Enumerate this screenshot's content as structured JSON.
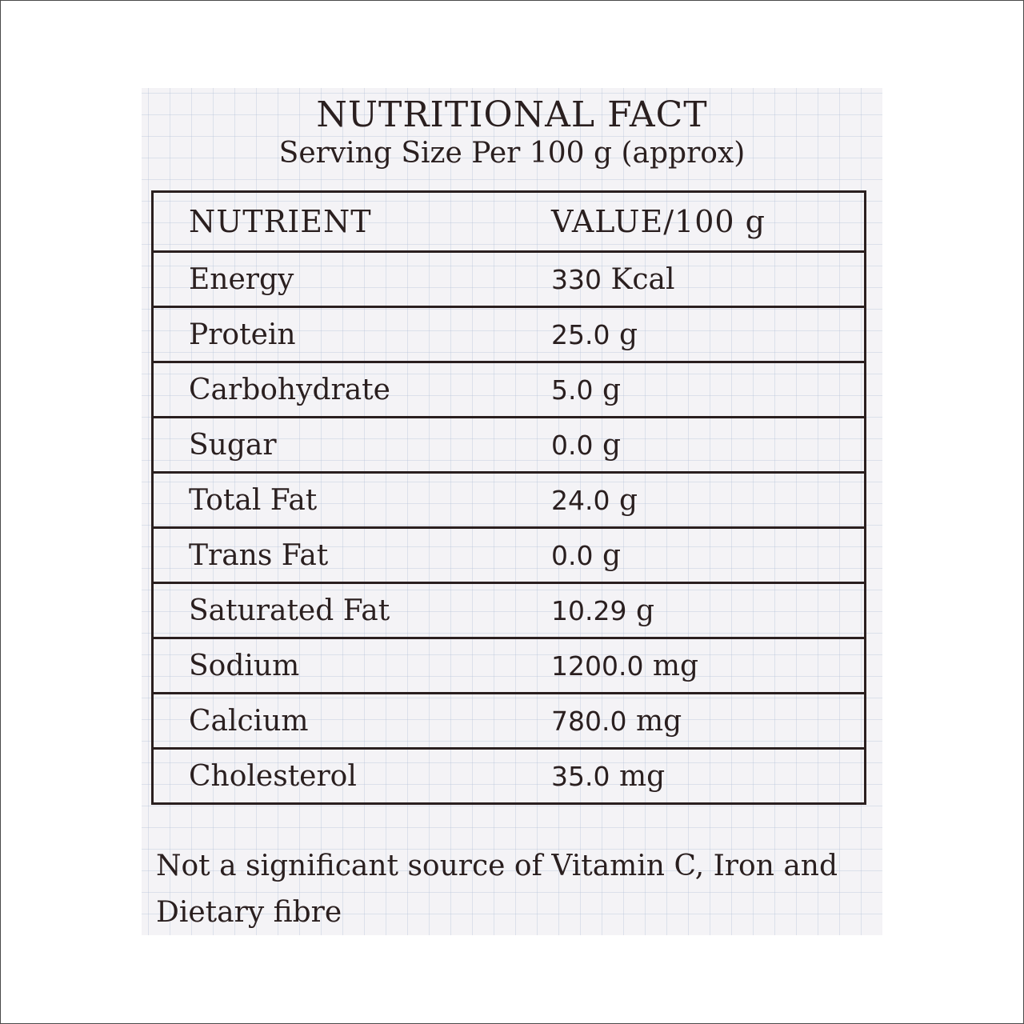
{
  "title": "NUTRITIONAL FACT",
  "subtitle": "Serving Size Per 100 g (approx)",
  "table": {
    "header": {
      "nutrient": "NUTRIENT",
      "value": "VALUE/100 g"
    },
    "rows": [
      {
        "nutrient": "Energy",
        "amount": "330",
        "unit": "Kcal"
      },
      {
        "nutrient": "Protein",
        "amount": "25.0",
        "unit": "g"
      },
      {
        "nutrient": "Carbohydrate",
        "amount": "5.0",
        "unit": "g"
      },
      {
        "nutrient": "Sugar",
        "amount": "0.0",
        "unit": "g"
      },
      {
        "nutrient": "Total Fat",
        "amount": "24.0",
        "unit": "g"
      },
      {
        "nutrient": "Trans Fat",
        "amount": "0.0",
        "unit": "g"
      },
      {
        "nutrient": "Saturated Fat",
        "amount": "10.29",
        "unit": "g"
      },
      {
        "nutrient": "Sodium",
        "amount": "1200.0",
        "unit": "mg"
      },
      {
        "nutrient": "Calcium",
        "amount": "780.0",
        "unit": "mg"
      },
      {
        "nutrient": "Cholesterol",
        "amount": "35.0",
        "unit": "mg"
      }
    ]
  },
  "note": "Not a significant source of Vitamin C, Iron and Dietary fibre"
}
